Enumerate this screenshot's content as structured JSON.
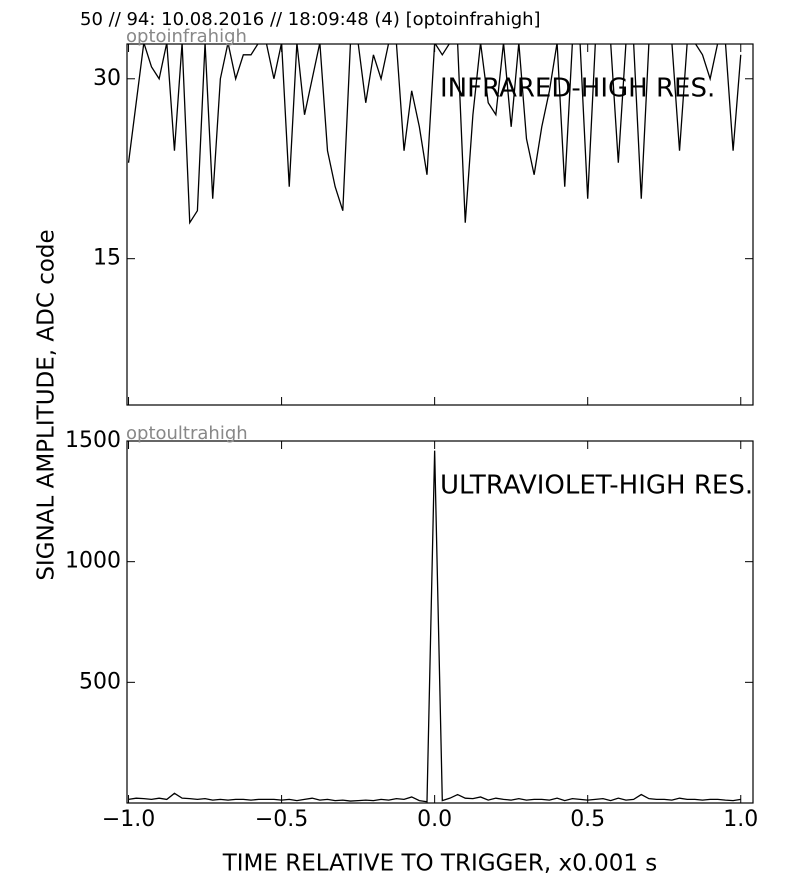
{
  "figure": {
    "title": "50 // 94:   10.08.2016 // 18:09:48 (4)  [optoinfrahigh]",
    "ylabel": "SIGNAL AMPLITUDE,  ADC code",
    "xlabel": "TIME RELATIVE TO TRIGGER,   x0.001 s"
  },
  "chart_data": [
    {
      "type": "line",
      "panel_label": "optoinfrahigh",
      "annotation": "INFRARED-HIGH RES.",
      "color": "#000000",
      "x": [
        -1,
        -0.975,
        -0.95,
        -0.925,
        -0.9,
        -0.875,
        -0.85,
        -0.825,
        -0.8,
        -0.775,
        -0.75,
        -0.725,
        -0.7,
        -0.675,
        -0.65,
        -0.625,
        -0.6,
        -0.575,
        -0.55,
        -0.525,
        -0.5,
        -0.475,
        -0.45,
        -0.425,
        -0.4,
        -0.375,
        -0.35,
        -0.325,
        -0.3,
        -0.275,
        -0.25,
        -0.225,
        -0.2,
        -0.175,
        -0.15,
        -0.125,
        -0.1,
        -0.075,
        -0.05,
        -0.025,
        0,
        0.025,
        0.05,
        0.075,
        0.1,
        0.125,
        0.15,
        0.175,
        0.2,
        0.225,
        0.25,
        0.275,
        0.3,
        0.325,
        0.35,
        0.375,
        0.4,
        0.425,
        0.45,
        0.475,
        0.5,
        0.525,
        0.55,
        0.575,
        0.6,
        0.625,
        0.65,
        0.675,
        0.7,
        0.725,
        0.75,
        0.775,
        0.8,
        0.825,
        0.85,
        0.875,
        0.9,
        0.925,
        0.95,
        0.975,
        1
      ],
      "values": [
        23,
        28,
        33,
        31,
        30,
        33,
        24,
        33,
        18,
        19,
        33,
        20,
        30,
        33,
        30,
        32,
        32,
        33,
        33,
        30,
        33,
        21,
        33,
        27,
        30,
        33,
        24,
        21,
        19,
        33,
        33,
        28,
        32,
        30,
        33,
        33,
        24,
        29,
        26,
        22,
        33,
        32,
        33,
        33,
        18,
        27,
        33,
        28,
        27,
        33,
        26,
        33,
        25,
        22,
        26,
        29,
        33,
        21,
        33,
        33,
        20,
        33,
        33,
        33,
        23,
        33,
        33,
        20,
        33,
        33,
        33,
        33,
        24,
        33,
        33,
        32,
        30,
        33,
        33,
        24,
        32
      ],
      "xlim": [
        -1.005,
        1.04
      ],
      "xticks": [
        -1,
        -0.5,
        0,
        0.5,
        1
      ],
      "ylim": [
        2.8,
        32.9
      ],
      "yticks": [
        15,
        30
      ]
    },
    {
      "type": "line",
      "panel_label": "optoultrahigh",
      "annotation": "ULTRAVIOLET-HIGH RES.",
      "color": "#000000",
      "x": [
        -1,
        -0.975,
        -0.95,
        -0.925,
        -0.9,
        -0.875,
        -0.85,
        -0.825,
        -0.8,
        -0.775,
        -0.75,
        -0.725,
        -0.7,
        -0.675,
        -0.65,
        -0.625,
        -0.6,
        -0.575,
        -0.55,
        -0.525,
        -0.5,
        -0.475,
        -0.45,
        -0.425,
        -0.4,
        -0.375,
        -0.35,
        -0.325,
        -0.3,
        -0.275,
        -0.25,
        -0.225,
        -0.2,
        -0.175,
        -0.15,
        -0.125,
        -0.1,
        -0.075,
        -0.05,
        -0.025,
        0,
        0.025,
        0.05,
        0.075,
        0.1,
        0.125,
        0.15,
        0.175,
        0.2,
        0.225,
        0.25,
        0.275,
        0.3,
        0.325,
        0.35,
        0.375,
        0.4,
        0.425,
        0.45,
        0.475,
        0.5,
        0.525,
        0.55,
        0.575,
        0.6,
        0.625,
        0.65,
        0.675,
        0.7,
        0.725,
        0.75,
        0.775,
        0.8,
        0.825,
        0.85,
        0.875,
        0.9,
        0.925,
        0.95,
        0.975,
        1
      ],
      "values": [
        15,
        20,
        18,
        15,
        20,
        15,
        40,
        20,
        18,
        15,
        18,
        12,
        15,
        12,
        15,
        15,
        12,
        15,
        15,
        15,
        12,
        15,
        10,
        15,
        20,
        12,
        15,
        10,
        12,
        8,
        10,
        12,
        10,
        15,
        12,
        18,
        15,
        25,
        10,
        5,
        1460,
        10,
        20,
        35,
        20,
        18,
        25,
        12,
        20,
        15,
        12,
        18,
        12,
        15,
        15,
        12,
        20,
        10,
        18,
        15,
        12,
        15,
        18,
        10,
        20,
        12,
        15,
        35,
        18,
        15,
        15,
        12,
        20,
        15,
        15,
        12,
        15,
        15,
        12,
        10,
        15
      ],
      "xlim": [
        -1.005,
        1.04
      ],
      "xticks": [
        {
          "value": -1,
          "label": "−1.0"
        },
        {
          "value": -0.5,
          "label": "−0.5"
        },
        {
          "value": 0,
          "label": "0.0"
        },
        {
          "value": 0.5,
          "label": "0.5"
        },
        {
          "value": 1,
          "label": "1.0"
        }
      ],
      "ylim": [
        0,
        1500
      ],
      "yticks": [
        500,
        1000,
        1500
      ]
    }
  ]
}
